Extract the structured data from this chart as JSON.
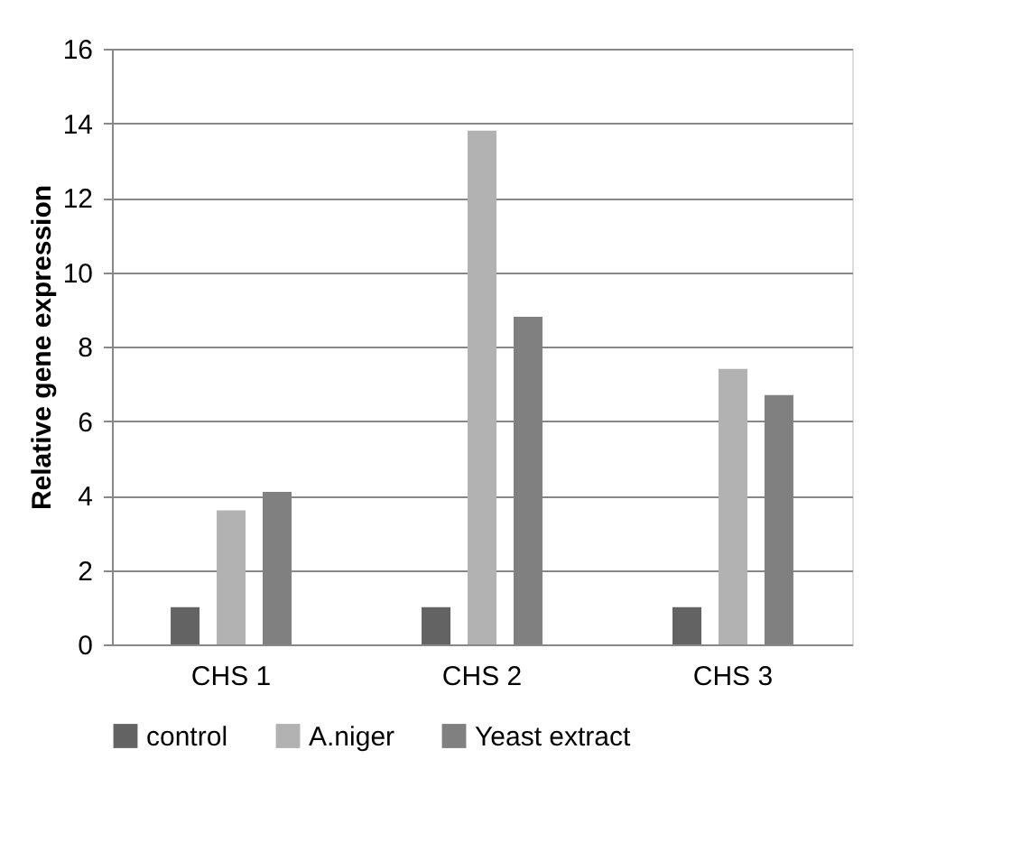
{
  "chart_data": {
    "type": "bar",
    "ylabel": "Relative gene expression",
    "categories": [
      "CHS 1",
      "CHS 2",
      "CHS 3"
    ],
    "series": [
      {
        "name": "control",
        "color": "#636363",
        "values": [
          1.0,
          1.0,
          1.0
        ]
      },
      {
        "name": "A.niger",
        "color": "#b2b2b2",
        "values": [
          3.6,
          13.8,
          7.4
        ]
      },
      {
        "name": "Yeast extract",
        "color": "#808080",
        "values": [
          4.1,
          8.8,
          6.7
        ]
      }
    ],
    "ylim": [
      0,
      16
    ],
    "yticks": [
      0,
      2,
      4,
      6,
      8,
      10,
      12,
      14,
      16
    ],
    "grid": "y",
    "legend": "bottom"
  }
}
